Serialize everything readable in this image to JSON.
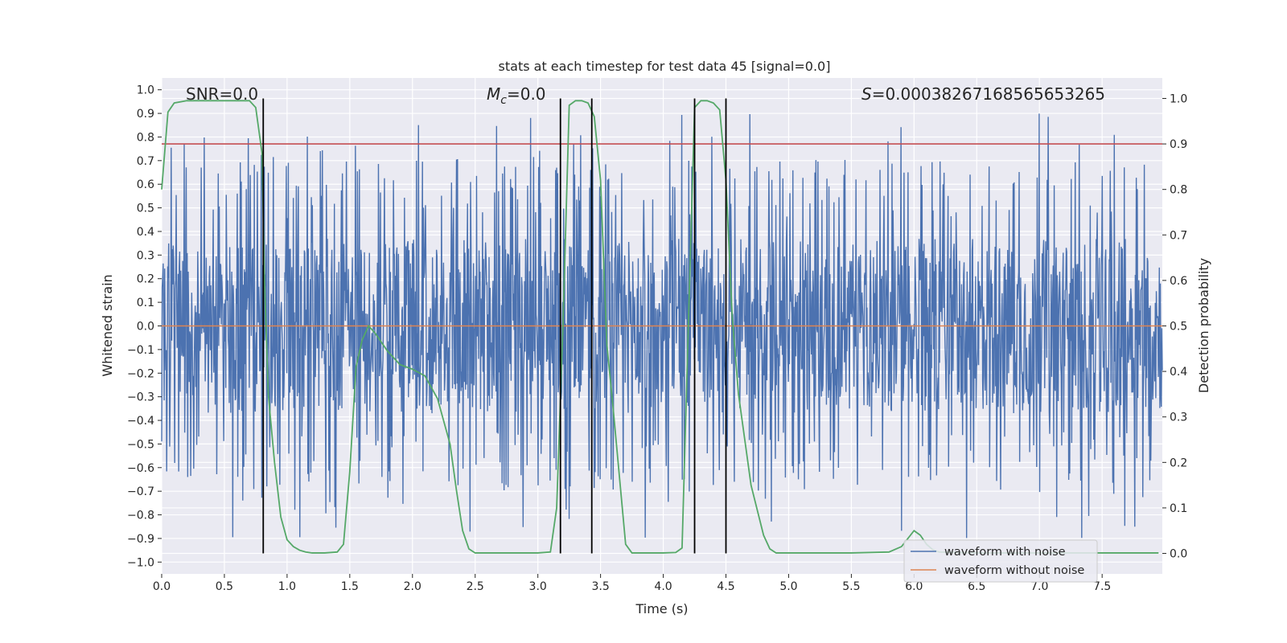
{
  "chart_data": {
    "type": "line",
    "title": "stats at each timestep for test data 45 [signal=0.0]",
    "xlabel": "Time (s)",
    "ylabel": "Whitened strain",
    "y2label": "Detection probability",
    "xlim": [
      0.0,
      7.98
    ],
    "ylim": [
      -1.05,
      1.05
    ],
    "y2lim": [
      -0.045,
      1.045
    ],
    "grid": true,
    "xticks": [
      0.0,
      0.5,
      1.0,
      1.5,
      2.0,
      2.5,
      3.0,
      3.5,
      4.0,
      4.5,
      5.0,
      5.5,
      6.0,
      6.5,
      7.0,
      7.5
    ],
    "xtick_labels": [
      "0.0",
      "0.5",
      "1.0",
      "1.5",
      "2.0",
      "2.5",
      "3.0",
      "3.5",
      "4.0",
      "4.5",
      "5.0",
      "5.5",
      "6.0",
      "6.5",
      "7.0",
      "7.5"
    ],
    "yticks": [
      1.0,
      0.9,
      0.8,
      0.7,
      0.6,
      0.5,
      0.4,
      0.3,
      0.2,
      0.1,
      0.0,
      -0.1,
      -0.2,
      -0.3,
      -0.4,
      -0.5,
      -0.6,
      -0.7,
      -0.8,
      -0.9,
      -1.0
    ],
    "ytick_labels": [
      "1.0",
      "0.9",
      "0.8",
      "0.7",
      "0.6",
      "0.5",
      "0.4",
      "0.3",
      "0.2",
      "0.1",
      "0.0",
      "−0.1",
      "−0.2",
      "−0.3",
      "−0.4",
      "−0.5",
      "−0.6",
      "−0.7",
      "−0.8",
      "−0.9",
      "−1.0"
    ],
    "y2ticks": [
      1.0,
      0.9,
      0.8,
      0.7,
      0.6,
      0.5,
      0.4,
      0.3,
      0.2,
      0.1,
      0.0
    ],
    "y2tick_labels": [
      "1.0",
      "0.9",
      "0.8",
      "0.7",
      "0.6",
      "0.5",
      "0.4",
      "0.3",
      "0.2",
      "0.1",
      "0.0"
    ],
    "threshold": 0.9,
    "noise": {
      "samples": 2000,
      "core_amplitude": 0.37,
      "seed": 45
    },
    "waveform_without_noise": {
      "y": 0.0
    },
    "detection_probability": {
      "x": [
        0.0,
        0.05,
        0.1,
        0.2,
        0.3,
        0.4,
        0.5,
        0.6,
        0.7,
        0.75,
        0.8,
        0.82,
        0.85,
        0.9,
        0.95,
        1.0,
        1.05,
        1.1,
        1.15,
        1.2,
        1.3,
        1.4,
        1.45,
        1.5,
        1.55,
        1.6,
        1.65,
        1.7,
        1.75,
        1.8,
        1.9,
        2.0,
        2.1,
        2.2,
        2.3,
        2.35,
        2.4,
        2.45,
        2.5,
        2.6,
        2.7,
        2.8,
        2.9,
        3.0,
        3.1,
        3.15,
        3.2,
        3.25,
        3.3,
        3.35,
        3.4,
        3.45,
        3.5,
        3.55,
        3.6,
        3.7,
        3.75,
        3.8,
        3.9,
        4.0,
        4.1,
        4.15,
        4.2,
        4.25,
        4.3,
        4.35,
        4.4,
        4.45,
        4.5,
        4.55,
        4.6,
        4.65,
        4.7,
        4.8,
        4.85,
        4.9,
        5.0,
        5.5,
        5.8,
        5.9,
        6.0,
        6.05,
        6.1,
        6.15,
        6.2,
        6.5,
        7.0,
        7.5,
        7.95
      ],
      "y": [
        0.8,
        0.97,
        0.99,
        0.995,
        0.995,
        0.995,
        0.995,
        0.995,
        0.995,
        0.98,
        0.88,
        0.6,
        0.35,
        0.2,
        0.08,
        0.03,
        0.015,
        0.007,
        0.003,
        0.001,
        0.001,
        0.003,
        0.02,
        0.18,
        0.41,
        0.47,
        0.5,
        0.485,
        0.465,
        0.445,
        0.415,
        0.405,
        0.39,
        0.34,
        0.24,
        0.14,
        0.05,
        0.01,
        0.001,
        0.001,
        0.001,
        0.001,
        0.001,
        0.001,
        0.003,
        0.1,
        0.5,
        0.985,
        0.995,
        0.995,
        0.99,
        0.96,
        0.82,
        0.46,
        0.32,
        0.02,
        0.001,
        0.001,
        0.001,
        0.001,
        0.002,
        0.012,
        0.5,
        0.98,
        0.995,
        0.995,
        0.99,
        0.975,
        0.82,
        0.52,
        0.35,
        0.25,
        0.15,
        0.04,
        0.01,
        0.001,
        0.001,
        0.001,
        0.003,
        0.015,
        0.05,
        0.04,
        0.02,
        0.008,
        0.003,
        0.001,
        0.001,
        0.001,
        0.001
      ]
    },
    "vertical_lines": [
      0.81,
      3.18,
      3.43,
      4.25,
      4.5
    ],
    "annotations": [
      {
        "name": "snr-annotation",
        "prefix": "SNR=0.0"
      },
      {
        "name": "chirp-mass-annotation",
        "prefix": "M",
        "subscript": "c",
        "suffix": "=0.0"
      },
      {
        "name": "statistic-annotation",
        "prefix": "S",
        "suffix": "=0.00038267168565653265"
      }
    ],
    "legend": {
      "position": "lower-right",
      "entries": [
        "waveform with noise",
        "waveform without noise"
      ]
    },
    "colors": {
      "noise": "#4c72b0",
      "clean": "#dd8452",
      "probability": "#55a868",
      "threshold": "#c44e52",
      "markers": "#000000",
      "background": "#eaeaf2",
      "grid": "#ffffff"
    }
  }
}
